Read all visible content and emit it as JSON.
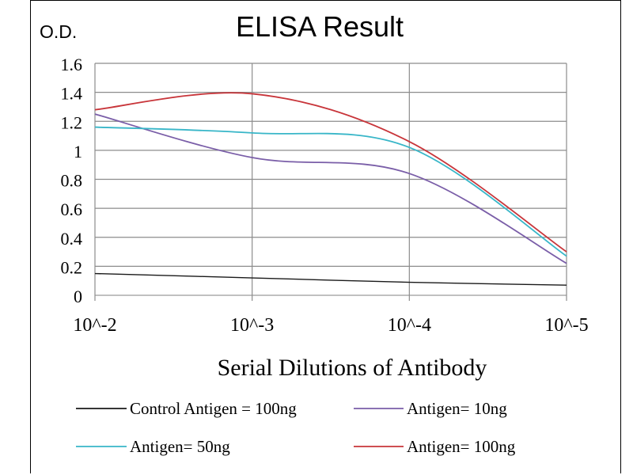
{
  "chart_data": {
    "type": "line",
    "title": "ELISA Result",
    "ylabel": "O.D.",
    "xlabel": "Serial Dilutions  of Antibody",
    "categories": [
      "10^-2",
      "10^-3",
      "10^-4",
      "10^-5"
    ],
    "ylim": [
      0,
      1.6
    ],
    "yticks": [
      "0",
      "0.2",
      "0.4",
      "0.6",
      "0.8",
      "1",
      "1.2",
      "1.4",
      "1.6"
    ],
    "grid": true,
    "legend_position": "bottom",
    "series": [
      {
        "name": "Control Antigen = 100ng",
        "color": "#1a1a1a",
        "values": [
          0.15,
          0.12,
          0.09,
          0.07
        ]
      },
      {
        "name": "Antigen= 10ng",
        "color": "#7a5ea8",
        "values": [
          1.25,
          0.95,
          0.84,
          0.22
        ]
      },
      {
        "name": "Antigen= 50ng",
        "color": "#38b6c8",
        "values": [
          1.16,
          1.12,
          1.02,
          0.27
        ]
      },
      {
        "name": "Antigen= 100ng",
        "color": "#c8353a",
        "values": [
          1.28,
          1.39,
          1.06,
          0.3
        ]
      }
    ]
  }
}
